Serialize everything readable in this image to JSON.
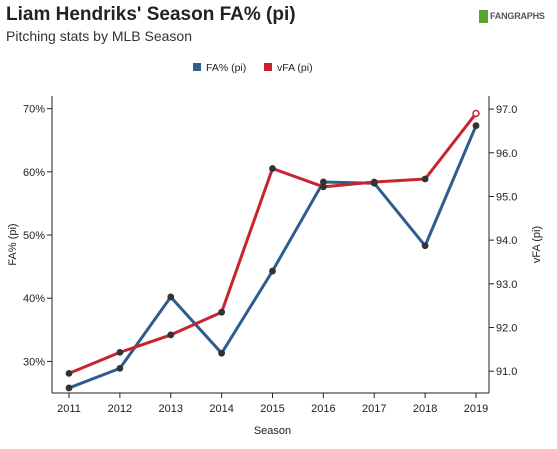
{
  "title": "Liam Hendriks' Season FA% (pi)",
  "subtitle": "Pitching stats by MLB Season",
  "logo": {
    "brand": "FANGRAPHS"
  },
  "colors": {
    "fa_pct": "#2f5d8f",
    "vfa": "#c8242f",
    "axis": "#222222"
  },
  "chart_data": {
    "type": "line",
    "xlabel": "Season",
    "categories": [
      "2011",
      "2012",
      "2013",
      "2014",
      "2015",
      "2016",
      "2017",
      "2018",
      "2019"
    ],
    "legend_position": "top-center",
    "grid": false,
    "y_left": {
      "label": "FA% (pi)",
      "ylim": [
        25,
        72
      ],
      "ticks": [
        30,
        40,
        50,
        60,
        70
      ],
      "tick_labels": [
        "30%",
        "40%",
        "50%",
        "60%",
        "70%"
      ]
    },
    "y_right": {
      "label": "vFA (pi)",
      "ylim": [
        90.5,
        97.3
      ],
      "ticks": [
        91.0,
        92.0,
        93.0,
        94.0,
        95.0,
        96.0,
        97.0
      ],
      "tick_labels": [
        "91.0",
        "92.0",
        "93.0",
        "94.0",
        "95.0",
        "96.0",
        "97.0"
      ]
    },
    "series": [
      {
        "name": "FA% (pi)",
        "axis": "left",
        "color": "#2f5d8f",
        "values": [
          25.8,
          28.9,
          40.2,
          31.3,
          44.3,
          58.4,
          58.2,
          48.3,
          67.3
        ]
      },
      {
        "name": "vFA (pi)",
        "axis": "right",
        "color": "#c8242f",
        "values": [
          90.95,
          91.43,
          91.83,
          92.35,
          95.64,
          95.22,
          95.33,
          95.4,
          96.9
        ]
      }
    ]
  }
}
